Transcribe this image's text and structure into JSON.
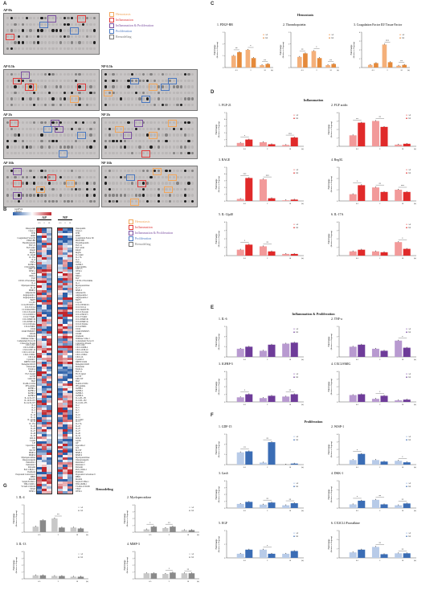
{
  "panels": {
    "A": "A",
    "B": "B",
    "C": "C",
    "D": "D",
    "E": "E",
    "F": "F",
    "G": "G"
  },
  "categories": [
    {
      "name": "Hemostasis",
      "color": "#f2a65a"
    },
    {
      "name": "Inflammation",
      "color": "#e03a3a"
    },
    {
      "name": "Inflammation & Proliferation",
      "color": "#7b4fa0"
    },
    {
      "name": "Proliferation",
      "color": "#4a78c0"
    },
    {
      "name": "Remodeling",
      "color": "#777777"
    }
  ],
  "blots": [
    "AP 0h",
    "AP 0.5h",
    "NP 0.5h",
    "AP 2h",
    "NP 2h",
    "AP 16h",
    "NP 16h"
  ],
  "heatmap": {
    "scale_label": "log2(Fold Change)",
    "groups": [
      "AP",
      "NP"
    ],
    "cols": [
      "0.5",
      "2",
      "16",
      "0.5",
      "2",
      "16"
    ],
    "left_labels": [
      "Osteopontin",
      "Cripto-1",
      "TFPI",
      "uPAR",
      "Coagulation Factor III",
      "PDGF-BB",
      "Thrombopoietin",
      "FGF-21",
      "FGF acidic",
      "RAGE",
      "Reg3G",
      "IL-12p40",
      "IL-17A",
      "IL-6",
      "TNF-a",
      "IGFBP-5",
      "CXCL9/MIG",
      "GDF-15",
      "WISP-1",
      "Gas6",
      "DKK-1",
      "EGF",
      "CX3CL1/Fractalkine",
      "IL-4",
      "Myeloperoxidase",
      "IL-13",
      "MMP-3",
      "Adiponectin",
      "Angiopoietin-1",
      "Angiopoietin-2",
      "BAFF",
      "C1q R1",
      "CCL2/JE/MCP-1",
      "CCL3/CCL4",
      "CCL5/RANTES",
      "CCL11/Eotaxin",
      "CCL12/MCP-5",
      "CCL17/TARC",
      "CCL19/MIP-3b",
      "CCL20/MIP-3a",
      "CCL21/6Ckine",
      "CCL22/MDC",
      "CD14",
      "CD40/TNFRSF5",
      "CD160",
      "Chemerin",
      "Chitinase 3-like 1",
      "Complement Factor D",
      "C-Reactive Protein",
      "CXCL1/KC",
      "CXCL2/MIP-2",
      "CXCL10/IP-10",
      "CXCL11/I-TAC",
      "CXCL13/BLC",
      "CXCL16",
      "Cystatin C",
      "DPPIV/CD26",
      "Endoglin/CD105",
      "Endostatin",
      "Fetuin A",
      "FGF-21",
      "Flt-3 Ligand",
      "G-CSF",
      "GM-CSF",
      "HGF",
      "ICAM-1/CD54",
      "IFN-gamma",
      "IGFBP-1",
      "IGFBP-2",
      "IGFBP-3",
      "IGFBP-6",
      "IL-1a/IL-1F1",
      "IL-1b/IL-1F2",
      "IL-1ra/IL-1F3",
      "IL-2",
      "IL-3",
      "IL-5",
      "IL-7",
      "IL-10",
      "IL-11",
      "IL-12p40",
      "IL-15",
      "IL-17A",
      "IL-22",
      "IL-23",
      "IL-27",
      "IL-28",
      "IL-33",
      "LDL R",
      "Leptin",
      "LIF",
      "Lipocalin-2",
      "LIX",
      "M-CSF",
      "MMP-2",
      "MMP-9",
      "Myeloperoxidase",
      "Osteoprotegerin",
      "Pentraxin 2",
      "Pentraxin 3",
      "Periostin",
      "Pref-1/DLK-1",
      "Proliferin",
      "Proprotein Convertase 9",
      "RBP4",
      "Resistin",
      "Serpin E1/PAI-1",
      "TIM-1/KIM-1",
      "VCAM-1/CD106",
      "VEGF",
      "WISP-1"
    ],
    "right_labels": [
      "Osteopontin",
      "Cripto-1",
      "TFPI",
      "uPAR",
      "Coagulation Factor III",
      "PDGF-BB",
      "Thrombopoietin",
      "FGF-21",
      "FGF acidic",
      "RAGE",
      "Reg3G",
      "IL-12p40",
      "IL-17A",
      "IL-6",
      "TNF-a",
      "IGFBP-5",
      "CXCL9/MIG",
      "GDF-15",
      "WISP-1",
      "Gas6",
      "DKK-1",
      "EGF",
      "CX3CL1/Fractalkine",
      "IL-4",
      "Myeloperoxidase",
      "IL-13",
      "MMP-3",
      "Adiponectin",
      "Angiopoietin-1",
      "Angiopoietin-2",
      "BAFF",
      "C1q R1",
      "CCL2/JE/MCP-1",
      "CCL3/CCL4",
      "CCL5/RANTES",
      "CCL11/Eotaxin",
      "CCL12/MCP-5",
      "CCL17/TARC",
      "CCL19/MIP-3b",
      "CCL20/MIP-3a",
      "CCL21/6Ckine",
      "CCL22/MDC",
      "CD14",
      "CD40/TNFRSF5",
      "CD160",
      "Chemerin",
      "Chitinase 3-like 1",
      "Complement Factor D",
      "C-Reactive Protein",
      "CXCL1/KC",
      "CXCL2/MIP-2",
      "CXCL10/IP-10",
      "CXCL11/I-TAC",
      "CXCL13/BLC",
      "CXCL16",
      "Cystatin C",
      "DPPIV/CD26",
      "Endoglin/CD105",
      "Endostatin",
      "Fetuin A",
      "FGF-21",
      "Flt-3 Ligand",
      "G-CSF",
      "GM-CSF",
      "HGF",
      "ICAM-1/CD54",
      "IFN-gamma",
      "IGFBP-1",
      "IGFBP-2",
      "IGFBP-3",
      "IGFBP-6",
      "IL-1a/IL-1F1",
      "IL-1b/IL-1F2",
      "IL-1ra/IL-1F3",
      "IL-2",
      "IL-3",
      "IL-5",
      "IL-7",
      "IL-10",
      "IL-11",
      "IL-12p40",
      "IL-15",
      "IL-17A",
      "IL-22",
      "IL-23",
      "IL-27",
      "IL-28",
      "IL-33",
      "LDL R",
      "Leptin",
      "LIF",
      "Lipocalin-2",
      "LIX",
      "M-CSF",
      "MMP-2",
      "MMP-9",
      "Myeloperoxidase",
      "Osteoprotegerin",
      "Pentraxin 2",
      "Pentraxin 3",
      "Periostin",
      "Pref-1/DLK-1",
      "Proliferin",
      "Proprotein Convertase 9",
      "RBP4",
      "Resistin",
      "Serpin E1/PAI-1",
      "TIM-1/KIM-1",
      "VCAM-1/CD106",
      "VEGF",
      "WISP-1"
    ]
  },
  "section_titles": {
    "C": "Hemostasis",
    "D": "Inflammation",
    "E": "Inflammation & Proliferation",
    "F": "Proliferation",
    "G": "Remodeling"
  },
  "common": {
    "ylabel1": "Fold change",
    "ylabel2": "(Relative to 0h group)",
    "legend": [
      "AP",
      "NP"
    ],
    "x": [
      "0.5",
      "2",
      "16"
    ],
    "xunit": "(h)"
  },
  "chart_data": [
    {
      "type": "bar",
      "panel": "C",
      "title": "1. PDGF-BB",
      "categories": [
        "0.5",
        "2",
        "16"
      ],
      "series": [
        {
          "name": "AP",
          "values": [
            1.0,
            1.5,
            0.2
          ]
        },
        {
          "name": "NP",
          "values": [
            1.3,
            0.8,
            0.3
          ]
        }
      ],
      "ylim": [
        0,
        3
      ],
      "sig": [
        [
          "**",
          0
        ],
        [
          "*",
          1
        ],
        [
          "**",
          2
        ]
      ]
    },
    {
      "type": "bar",
      "panel": "C",
      "title": "2. Thrombopoietin",
      "categories": [
        "0.5",
        "2",
        "16"
      ],
      "series": [
        {
          "name": "AP",
          "values": [
            0.9,
            1.4,
            0.2
          ]
        },
        {
          "name": "NP",
          "values": [
            1.2,
            0.8,
            0.3
          ]
        }
      ],
      "ylim": [
        0,
        3
      ],
      "sig": [
        [
          "**",
          0
        ],
        [
          "*",
          1
        ],
        [
          "**",
          2
        ]
      ]
    },
    {
      "type": "bar",
      "panel": "C",
      "title": "3. Coagulation Factor III/ Tissue Factor",
      "categories": [
        "0.5",
        "2",
        "16"
      ],
      "series": [
        {
          "name": "AP",
          "values": [
            0.3,
            2.6,
            0.2
          ]
        },
        {
          "name": "NP",
          "values": [
            0.5,
            0.6,
            0.3
          ]
        }
      ],
      "ylim": [
        0,
        4
      ],
      "sig": [
        [
          "***",
          1
        ],
        [
          "**",
          2
        ]
      ]
    },
    {
      "type": "bar",
      "panel": "D",
      "title": "1. FGF-21",
      "categories": [
        "0.5",
        "2",
        "16"
      ],
      "series": [
        {
          "name": "AP",
          "values": [
            0.5,
            0.6,
            0.2
          ]
        },
        {
          "name": "NP",
          "values": [
            1.0,
            0.3,
            1.3
          ]
        }
      ],
      "ylim": [
        0,
        5
      ],
      "sig": [
        [
          "*",
          0
        ],
        [
          "***",
          2
        ]
      ]
    },
    {
      "type": "bar",
      "panel": "D",
      "title": "2. FGF acidic",
      "categories": [
        "0.5",
        "2",
        "16"
      ],
      "series": [
        {
          "name": "AP",
          "values": [
            1.3,
            3.0,
            0.2
          ]
        },
        {
          "name": "NP",
          "values": [
            2.8,
            2.3,
            0.3
          ]
        }
      ],
      "ylim": [
        0,
        4
      ],
      "sig": [
        [
          "**",
          0
        ],
        [
          "**",
          1
        ]
      ]
    },
    {
      "type": "bar",
      "panel": "D",
      "title": "3. RAGE",
      "categories": [
        "0.5",
        "2",
        "16"
      ],
      "series": [
        {
          "name": "AP",
          "values": [
            0.3,
            3.2,
            0.1
          ]
        },
        {
          "name": "NP",
          "values": [
            3.4,
            0.4,
            0.2
          ]
        }
      ],
      "ylim": [
        0,
        5
      ],
      "sig": [
        [
          "***",
          0
        ],
        [
          "***",
          1
        ]
      ]
    },
    {
      "type": "bar",
      "panel": "D",
      "title": "4. Reg3G",
      "categories": [
        "0.5",
        "2",
        "16"
      ],
      "series": [
        {
          "name": "AP",
          "values": [
            0.6,
            1.2,
            1.0
          ]
        },
        {
          "name": "NP",
          "values": [
            1.4,
            0.8,
            0.8
          ]
        }
      ],
      "ylim": [
        0,
        3
      ],
      "sig": [
        [
          "*",
          0
        ],
        [
          "**",
          1
        ],
        [
          "***",
          2
        ]
      ]
    },
    {
      "type": "bar",
      "panel": "D",
      "title": "5. IL-12p40",
      "categories": [
        "0.5",
        "2",
        "16"
      ],
      "series": [
        {
          "name": "AP",
          "values": [
            0.7,
            1.1,
            0.2
          ]
        },
        {
          "name": "NP",
          "values": [
            1.3,
            0.5,
            0.2
          ]
        }
      ],
      "ylim": [
        0,
        4
      ],
      "sig": [
        [
          "*",
          0
        ],
        [
          "**",
          1
        ]
      ]
    },
    {
      "type": "bar",
      "panel": "D",
      "title": "6. IL-17A",
      "categories": [
        "0.5",
        "2",
        "16"
      ],
      "series": [
        {
          "name": "AP",
          "values": [
            0.5,
            0.5,
            1.6
          ]
        },
        {
          "name": "NP",
          "values": [
            0.7,
            0.4,
            0.8
          ]
        }
      ],
      "ylim": [
        0,
        4
      ],
      "sig": [
        [
          "*",
          2
        ]
      ]
    },
    {
      "type": "bar",
      "panel": "E",
      "title": "1. IL-6",
      "categories": [
        "0.5",
        "2",
        "16"
      ],
      "series": [
        {
          "name": "AP",
          "values": [
            0.8,
            0.6,
            1.3
          ]
        },
        {
          "name": "NP",
          "values": [
            1.0,
            1.2,
            1.4
          ]
        }
      ],
      "ylim": [
        0,
        3
      ],
      "sig": []
    },
    {
      "type": "bar",
      "panel": "E",
      "title": "2. TNF-a",
      "categories": [
        "0.5",
        "2",
        "16"
      ],
      "series": [
        {
          "name": "AP",
          "values": [
            1.0,
            0.8,
            1.6
          ]
        },
        {
          "name": "NP",
          "values": [
            1.2,
            0.6,
            0.9
          ]
        }
      ],
      "ylim": [
        0,
        3
      ],
      "sig": [
        [
          "*",
          2
        ]
      ]
    },
    {
      "type": "bar",
      "panel": "E",
      "title": "3. IGFBP-5",
      "categories": [
        "0.5",
        "2",
        "16"
      ],
      "series": [
        {
          "name": "AP",
          "values": [
            0.6,
            0.5,
            0.7
          ]
        },
        {
          "name": "NP",
          "values": [
            1.0,
            0.8,
            1.0
          ]
        }
      ],
      "ylim": [
        0,
        4
      ],
      "sig": [
        [
          "*",
          0
        ],
        [
          "**",
          2
        ]
      ]
    },
    {
      "type": "bar",
      "panel": "E",
      "title": "4. CXCL9/MIG",
      "categories": [
        "0.5",
        "2",
        "16"
      ],
      "series": [
        {
          "name": "AP",
          "values": [
            0.9,
            0.4,
            0.2
          ]
        },
        {
          "name": "NP",
          "values": [
            1.0,
            0.8,
            0.3
          ]
        }
      ],
      "ylim": [
        0,
        4
      ],
      "sig": [
        [
          "*",
          1
        ]
      ]
    },
    {
      "type": "bar",
      "panel": "F",
      "title": "1. GDF-15",
      "categories": [
        "0.5",
        "2",
        "16"
      ],
      "series": [
        {
          "name": "AP",
          "values": [
            1.2,
            0.2,
            0.0
          ]
        },
        {
          "name": "NP",
          "values": [
            1.3,
            2.2,
            0.1
          ]
        }
      ],
      "ylim": [
        0,
        3
      ],
      "sig": [
        [
          "**",
          0
        ],
        [
          "**",
          1
        ]
      ]
    },
    {
      "type": "bar",
      "panel": "F",
      "title": "2. WISP-1",
      "categories": [
        "0.5",
        "2",
        "16"
      ],
      "series": [
        {
          "name": "AP",
          "values": [
            0.6,
            0.6,
            0.5
          ]
        },
        {
          "name": "NP",
          "values": [
            1.4,
            0.4,
            0.3
          ]
        }
      ],
      "ylim": [
        0,
        4
      ],
      "sig": [
        [
          "*",
          0
        ],
        [
          "*",
          2
        ]
      ]
    },
    {
      "type": "bar",
      "panel": "F",
      "title": "3. Gas6",
      "categories": [
        "0.5",
        "2",
        "16"
      ],
      "series": [
        {
          "name": "AP",
          "values": [
            0.6,
            0.5,
            0.4
          ]
        },
        {
          "name": "NP",
          "values": [
            0.9,
            0.8,
            0.7
          ]
        }
      ],
      "ylim": [
        0,
        4
      ],
      "sig": [
        [
          "**",
          1
        ],
        [
          "**",
          2
        ]
      ]
    },
    {
      "type": "bar",
      "panel": "F",
      "title": "4. DKK-1",
      "categories": [
        "0.5",
        "2",
        "16"
      ],
      "series": [
        {
          "name": "AP",
          "values": [
            0.4,
            0.9,
            0.3
          ]
        },
        {
          "name": "NP",
          "values": [
            0.8,
            0.4,
            0.5
          ]
        }
      ],
      "ylim": [
        0,
        3
      ],
      "sig": [
        [
          "*",
          0
        ],
        [
          "**",
          1
        ],
        [
          "**",
          2
        ]
      ]
    },
    {
      "type": "bar",
      "panel": "F",
      "title": "5. EGF",
      "categories": [
        "0.5",
        "2",
        "16"
      ],
      "series": [
        {
          "name": "AP",
          "values": [
            0.3,
            0.6,
            0.3
          ]
        },
        {
          "name": "NP",
          "values": [
            0.6,
            0.3,
            0.5
          ]
        }
      ],
      "ylim": [
        0,
        2
      ],
      "sig": [
        [
          "*",
          1
        ]
      ]
    },
    {
      "type": "bar",
      "panel": "F",
      "title": "6. CX3CL1/Fractalkine",
      "categories": [
        "0.5",
        "2",
        "16"
      ],
      "series": [
        {
          "name": "AP",
          "values": [
            0.6,
            1.2,
            0.5
          ]
        },
        {
          "name": "NP",
          "values": [
            0.9,
            0.4,
            0.5
          ]
        }
      ],
      "ylim": [
        0,
        3
      ],
      "sig": [
        [
          "**",
          1
        ],
        [
          "**",
          2
        ]
      ]
    },
    {
      "type": "bar",
      "panel": "G",
      "title": "1. IL-4",
      "categories": [
        "0.5",
        "2",
        "16"
      ],
      "series": [
        {
          "name": "AP",
          "values": [
            0.6,
            1.5,
            0.5
          ]
        },
        {
          "name": "NP",
          "values": [
            1.3,
            0.5,
            0.4
          ]
        }
      ],
      "ylim": [
        0,
        3
      ],
      "sig": [
        [
          "**",
          1
        ]
      ]
    },
    {
      "type": "bar",
      "panel": "G",
      "title": "2. Myeloperoxidase",
      "categories": [
        "0.5",
        "2",
        "16"
      ],
      "series": [
        {
          "name": "AP",
          "values": [
            0.4,
            0.6,
            0.3
          ]
        },
        {
          "name": "NP",
          "values": [
            0.8,
            0.8,
            0.3
          ]
        }
      ],
      "ylim": [
        0,
        4
      ],
      "sig": [
        [
          "*",
          0
        ],
        [
          "**",
          1
        ]
      ]
    },
    {
      "type": "bar",
      "panel": "G",
      "title": "3. IL-13",
      "categories": [
        "0.5",
        "2",
        "16"
      ],
      "series": [
        {
          "name": "AP",
          "values": [
            0.5,
            0.4,
            0.3
          ]
        },
        {
          "name": "NP",
          "values": [
            0.5,
            0.4,
            0.3
          ]
        }
      ],
      "ylim": [
        0,
        4
      ],
      "sig": []
    },
    {
      "type": "bar",
      "panel": "G",
      "title": "4. MMP-3",
      "categories": [
        "0.5",
        "2",
        "16"
      ],
      "series": [
        {
          "name": "AP",
          "values": [
            0.8,
            0.7,
            0.8
          ]
        },
        {
          "name": "NP",
          "values": [
            0.8,
            0.9,
            0.8
          ]
        }
      ],
      "ylim": [
        0,
        4
      ],
      "sig": [
        [
          "*",
          1
        ],
        [
          "**",
          2
        ]
      ]
    }
  ]
}
